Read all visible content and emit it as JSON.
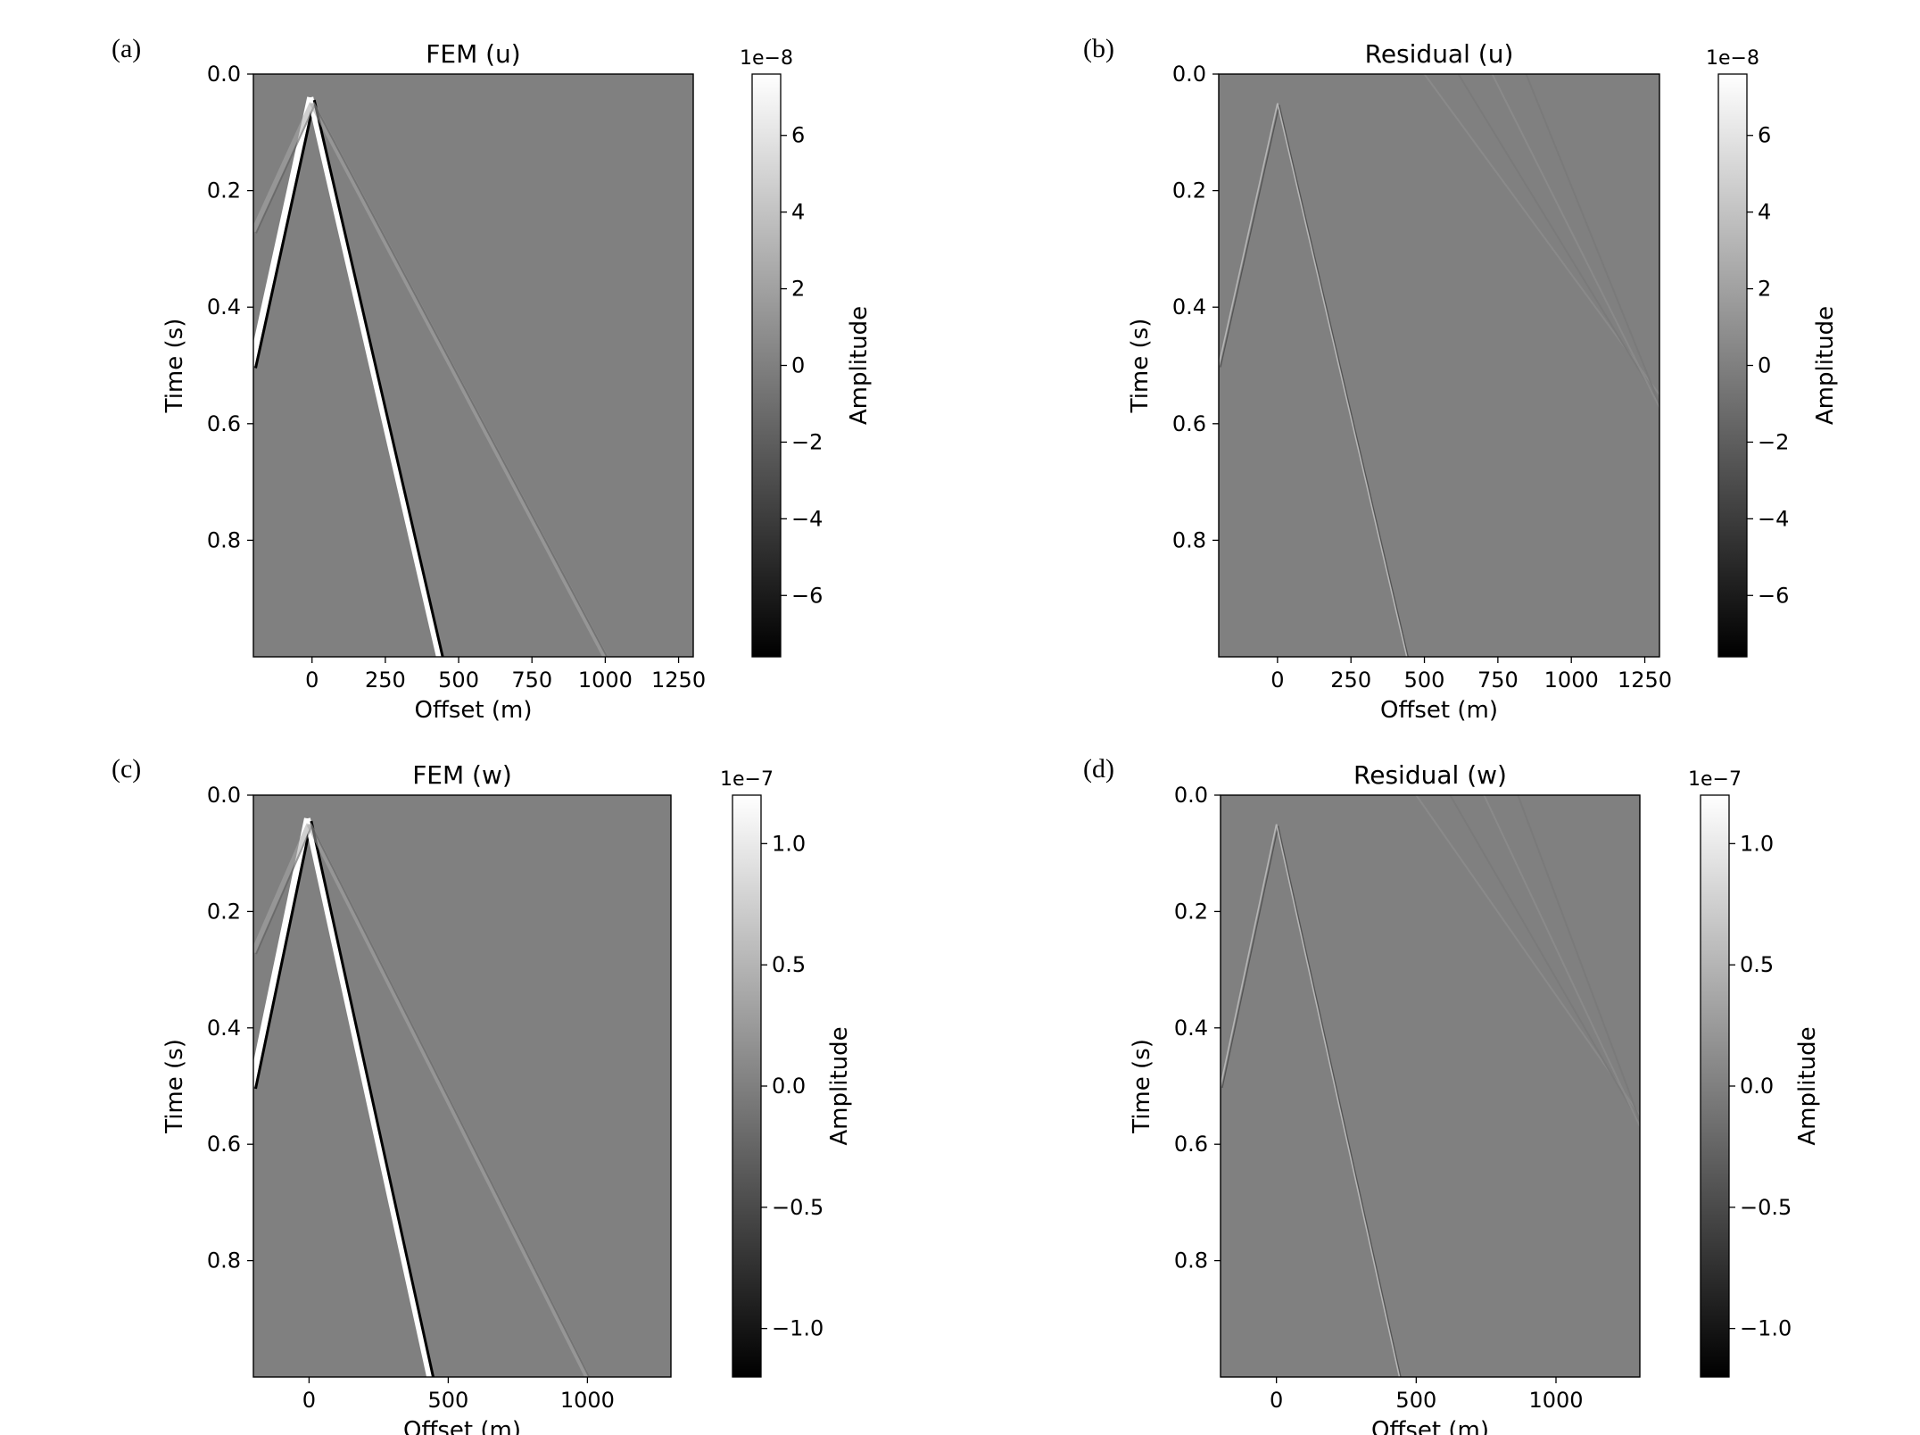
{
  "chart_data": [
    {
      "type": "heatmap",
      "panel_label": "(a)",
      "title": "FEM (u)",
      "xlabel": "Offset (m)",
      "ylabel": "Time (s)",
      "xlim": [
        -200,
        1300
      ],
      "ylim": [
        0,
        1.0
      ],
      "xticks": [
        0,
        250,
        500,
        750,
        1000,
        1250
      ],
      "xtick_labels": [
        "0",
        "250",
        "500",
        "750",
        "1000",
        "1250"
      ],
      "yticks": [
        0.0,
        0.2,
        0.4,
        0.6,
        0.8
      ],
      "ytick_labels": [
        "0.0",
        "0.2",
        "0.4",
        "0.6",
        "0.8"
      ],
      "colorbar": {
        "label": "Amplitude",
        "scale_label": "1e−8",
        "range": [
          -7.6,
          7.6
        ],
        "ticks": [
          6,
          4,
          2,
          0,
          -2,
          -4,
          -6
        ],
        "tick_labels": [
          "6",
          "4",
          "2",
          "0",
          "−2",
          "−4",
          "−6"
        ]
      },
      "colormap": "gray",
      "events": [
        {
          "kind": "direct-wave",
          "apex_offset": 0,
          "apex_time": 0.04,
          "right_end": [
            440,
            1.0
          ],
          "left_end": [
            -200,
            0.5
          ],
          "strength": "strong"
        },
        {
          "kind": "surface-wave",
          "apex_offset": 0,
          "apex_time": 0.05,
          "right_end": [
            1000,
            1.0
          ],
          "left_end": [
            -200,
            0.27
          ],
          "strength": "weak"
        }
      ]
    },
    {
      "type": "heatmap",
      "panel_label": "(b)",
      "title": "Residual (u)",
      "xlabel": "Offset (m)",
      "ylabel": "Time (s)",
      "xlim": [
        -200,
        1300
      ],
      "ylim": [
        0,
        1.0
      ],
      "xticks": [
        0,
        250,
        500,
        750,
        1000,
        1250
      ],
      "xtick_labels": [
        "0",
        "250",
        "500",
        "750",
        "1000",
        "1250"
      ],
      "yticks": [
        0.0,
        0.2,
        0.4,
        0.6,
        0.8
      ],
      "ytick_labels": [
        "0.0",
        "0.2",
        "0.4",
        "0.6",
        "0.8"
      ],
      "colorbar": {
        "label": "Amplitude",
        "scale_label": "1e−8",
        "range": [
          -7.6,
          7.6
        ],
        "ticks": [
          6,
          4,
          2,
          0,
          -2,
          -4,
          -6
        ],
        "tick_labels": [
          "6",
          "4",
          "2",
          "0",
          "−2",
          "−4",
          "−6"
        ]
      },
      "colormap": "gray",
      "events": [
        {
          "kind": "direct-wave-residual",
          "apex_offset": 0,
          "apex_time": 0.05,
          "right_end": [
            440,
            1.0
          ],
          "left_end": [
            -200,
            0.5
          ],
          "strength": "faint"
        },
        {
          "kind": "surface-wave-residual",
          "apex_offset": 500,
          "apex_time": 0.0,
          "right_end": [
            1300,
            0.55
          ],
          "left_end": [
            500,
            0.0
          ],
          "strength": "very-faint"
        }
      ]
    },
    {
      "type": "heatmap",
      "panel_label": "(c)",
      "title": "FEM (w)",
      "xlabel": "Offset (m)",
      "ylabel": "Time (s)",
      "xlim": [
        -200,
        1300
      ],
      "ylim": [
        0,
        1.0
      ],
      "xticks": [
        0,
        500,
        1000
      ],
      "xtick_labels": [
        "0",
        "500",
        "1000"
      ],
      "yticks": [
        0.0,
        0.2,
        0.4,
        0.6,
        0.8
      ],
      "ytick_labels": [
        "0.0",
        "0.2",
        "0.4",
        "0.6",
        "0.8"
      ],
      "colorbar": {
        "label": "Amplitude",
        "scale_label": "1e−7",
        "range": [
          -1.2,
          1.2
        ],
        "ticks": [
          1.0,
          0.5,
          0.0,
          -0.5,
          -1.0
        ],
        "tick_labels": [
          "1.0",
          "0.5",
          "0.0",
          "−0.5",
          "−1.0"
        ]
      },
      "colormap": "gray",
      "events": [
        {
          "kind": "direct-wave",
          "apex_offset": 0,
          "apex_time": 0.04,
          "right_end": [
            440,
            1.0
          ],
          "left_end": [
            -200,
            0.5
          ],
          "strength": "strong"
        },
        {
          "kind": "surface-wave",
          "apex_offset": 0,
          "apex_time": 0.05,
          "right_end": [
            1000,
            1.0
          ],
          "left_end": [
            -200,
            0.27
          ],
          "strength": "weak"
        }
      ]
    },
    {
      "type": "heatmap",
      "panel_label": "(d)",
      "title": "Residual (w)",
      "xlabel": "Offset (m)",
      "ylabel": "Time (s)",
      "xlim": [
        -200,
        1300
      ],
      "ylim": [
        0,
        1.0
      ],
      "xticks": [
        0,
        500,
        1000
      ],
      "xtick_labels": [
        "0",
        "500",
        "1000"
      ],
      "yticks": [
        0.0,
        0.2,
        0.4,
        0.6,
        0.8
      ],
      "ytick_labels": [
        "0.0",
        "0.2",
        "0.4",
        "0.6",
        "0.8"
      ],
      "colorbar": {
        "label": "Amplitude",
        "scale_label": "1e−7",
        "range": [
          -1.2,
          1.2
        ],
        "ticks": [
          1.0,
          0.5,
          0.0,
          -0.5,
          -1.0
        ],
        "tick_labels": [
          "1.0",
          "0.5",
          "0.0",
          "−0.5",
          "−1.0"
        ]
      },
      "colormap": "gray",
      "events": [
        {
          "kind": "direct-wave-residual",
          "apex_offset": 0,
          "apex_time": 0.05,
          "right_end": [
            440,
            1.0
          ],
          "left_end": [
            -200,
            0.5
          ],
          "strength": "faint"
        },
        {
          "kind": "surface-wave-residual",
          "apex_offset": 500,
          "apex_time": 0.0,
          "right_end": [
            1300,
            0.55
          ],
          "left_end": [
            500,
            0.0
          ],
          "strength": "very-faint"
        }
      ]
    }
  ]
}
